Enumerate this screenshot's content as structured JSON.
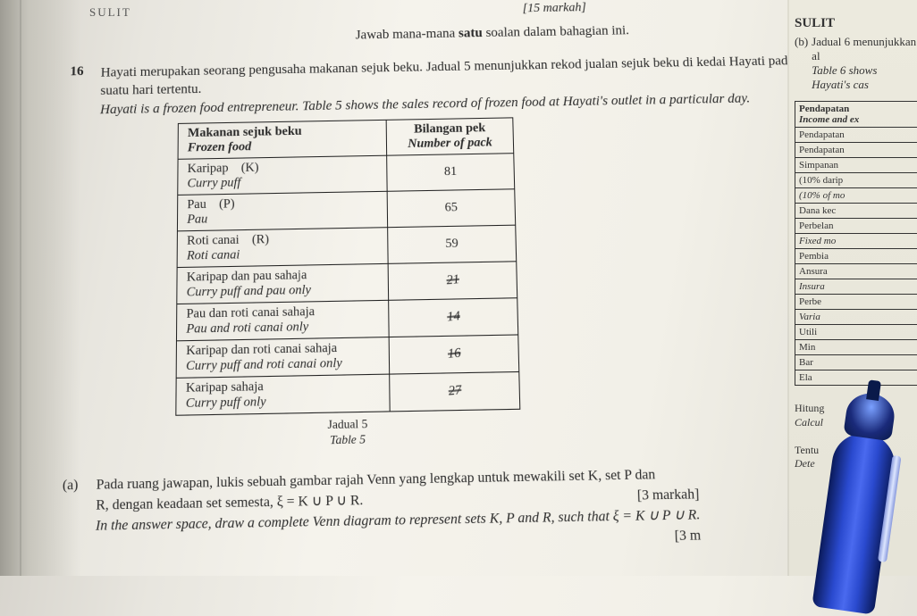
{
  "header": {
    "sulit_top_left": "SULIT",
    "marks": "[15 markah]",
    "instruction_my": "Jawab mana-mana ",
    "instruction_bold": "satu",
    "instruction_my2": " soalan dalam bahagian ini."
  },
  "q16": {
    "num": "16",
    "line1a": "Hayati merupakan seorang pengusaha makanan sejuk beku. Jadual 5 menunjukkan rekod jualan",
    "line1b": "sejuk beku di kedai Hayati pada suatu hari tertentu.",
    "line2": "Hayati is a frozen food entrepreneur. Table 5 shows the sales record of frozen food at Hayati's outlet in a particular day.",
    "table": {
      "hdr_food_my": "Makanan sejuk beku",
      "hdr_food_en": "Frozen food",
      "hdr_pack_my": "Bilangan pek",
      "hdr_pack_en": "Number of pack",
      "rows": [
        {
          "my": "Karipap",
          "sym": "(K)",
          "en": "Curry puff",
          "val": "81"
        },
        {
          "my": "Pau",
          "sym": "(P)",
          "en": "Pau",
          "val": "65"
        },
        {
          "my": "Roti canai",
          "sym": "(R)",
          "en": "Roti canai",
          "val": "59"
        },
        {
          "my": "Karipap dan pau sahaja",
          "sym": "",
          "en": "Curry puff and pau only",
          "val": "21",
          "hand": true
        },
        {
          "my": "Pau dan roti canai sahaja",
          "sym": "",
          "en": "Pau and roti canai only",
          "val": "14",
          "hand": true
        },
        {
          "my": "Karipap dan roti canai sahaja",
          "sym": "",
          "en": "Curry puff and roti canai only",
          "val": "16",
          "hand": true
        },
        {
          "my": "Karipap sahaja",
          "sym": "",
          "en": "Curry puff only",
          "val": "27",
          "hand": true
        }
      ],
      "caption_my": "Jadual 5",
      "caption_en": "Table 5"
    },
    "part_a": {
      "label": "(a)",
      "my1": "Pada ruang jawapan, lukis sebuah gambar rajah Venn yang lengkap untuk mewakili set K, set P dan",
      "my2": "R, dengan keadaan set semesta, ξ = K ∪ P ∪ R.",
      "en": "In the answer space, draw a complete Venn diagram to represent sets K, P and R, such that ξ = K ∪ P ∪ R.",
      "marks": "[3 markah]",
      "marks2": "[3 m"
    }
  },
  "right": {
    "sulit": "SULIT",
    "b_label": "(b)",
    "b_my": "Jadual 6 menunjukkan al",
    "b_en": "Table 6 shows Hayati's cas",
    "tbl": {
      "h1": "Pendapatan",
      "h1i": "Income and ex",
      "r": [
        "Pendapatan",
        "Pendapatan",
        "Simpanan",
        "(10% darip",
        "(10% of mo",
        "Dana kec",
        "Perbelan",
        "Fixed mo",
        "Pembia",
        "Ansura",
        "Insura",
        "Perbe",
        "Varia",
        "Utili",
        "Min",
        "Bar",
        "Ela"
      ]
    },
    "foot1": "Hitung",
    "foot2": "Calcul",
    "foot3": "Tentu",
    "foot4": "Dete"
  },
  "style": {
    "text_color": "#2a2a2a"
  }
}
